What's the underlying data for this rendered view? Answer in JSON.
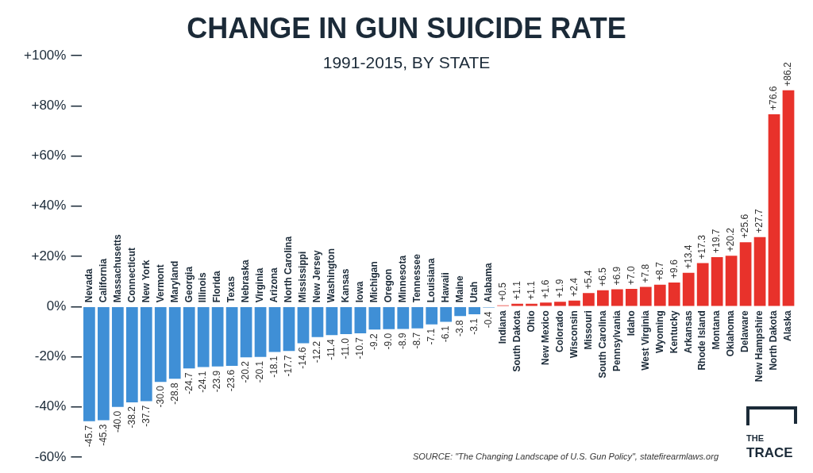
{
  "chart_data": {
    "type": "bar",
    "title": "CHANGE IN GUN SUICIDE RATE",
    "subtitle": "1991-2015, BY STATE",
    "annotations": [
      "SOURCE: \"The Changing Landscape of U.S. Gun Policy\", statefirearmlaws.org",
      "THE TRACE"
    ],
    "categories": [
      "Nevada",
      "California",
      "Massachusetts",
      "Connecticut",
      "New York",
      "Vermont",
      "Maryland",
      "Georgia",
      "Illinois",
      "Florida",
      "Texas",
      "Nebraska",
      "Virginia",
      "Arizona",
      "North Carolina",
      "Mississippi",
      "New Jersey",
      "Washington",
      "Kansas",
      "Iowa",
      "Michigan",
      "Oregon",
      "Minnesota",
      "Tennessee",
      "Louisiana",
      "Hawaii",
      "Maine",
      "Utah",
      "Alabama",
      "Indiana",
      "South Dakota",
      "Ohio",
      "New Mexico",
      "Colorado",
      "Wisconsin",
      "Missouri",
      "South Carolina",
      "Pennsylvania",
      "Idaho",
      "West Virginia",
      "Wyoming",
      "Kentucky",
      "Arkansas",
      "Rhode Island",
      "Montana",
      "Oklahoma",
      "Delaware",
      "New Hampshire",
      "North Dakota",
      "Alaska"
    ],
    "values": [
      -45.7,
      -45.3,
      -40.0,
      -38.2,
      -37.7,
      -30.0,
      -28.8,
      -24.7,
      -24.1,
      -23.9,
      -23.6,
      -20.2,
      -20.1,
      -18.1,
      -17.7,
      -14.6,
      -12.2,
      -11.4,
      -11.0,
      -10.7,
      -9.2,
      -9.0,
      -8.9,
      -8.7,
      -7.1,
      -6.1,
      -3.8,
      -3.1,
      -0.4,
      0.5,
      1.1,
      1.1,
      1.6,
      1.9,
      2.4,
      5.4,
      6.5,
      6.9,
      7.0,
      7.8,
      8.7,
      9.6,
      13.4,
      17.3,
      19.7,
      20.2,
      25.6,
      27.7,
      76.6,
      86.2
    ],
    "value_labels": [
      "-45.7",
      "-45.3",
      "-40.0",
      "-38.2",
      "-37.7",
      "-30.0",
      "-28.8",
      "-24.7",
      "-24.1",
      "-23.9",
      "-23.6",
      "-20.2",
      "-20.1",
      "-18.1",
      "-17.7",
      "-14.6",
      "-12.2",
      "-11.4",
      "-11.0",
      "-10.7",
      "-9.2",
      "-9.0",
      "-8.9",
      "-8.7",
      "-7.1",
      "-6.1",
      "-3.8",
      "-3.1",
      "-0.4",
      "+0.5",
      "+1.1",
      "+1.1",
      "+1.6",
      "+1.9",
      "+2.4",
      "+5.4",
      "+6.5",
      "+6.9",
      "+7.0",
      "+7.8",
      "+8.7",
      "+9.6",
      "+13.4",
      "+17.3",
      "+19.7",
      "+20.2",
      "+25.6",
      "+27.7",
      "+76.6",
      "+86.2"
    ],
    "colors": [
      "#3f8fd6",
      "#3f8fd6",
      "#3f8fd6",
      "#3f8fd6",
      "#3f8fd6",
      "#3f8fd6",
      "#3f8fd6",
      "#3f8fd6",
      "#3f8fd6",
      "#3f8fd6",
      "#3f8fd6",
      "#3f8fd6",
      "#3f8fd6",
      "#3f8fd6",
      "#3f8fd6",
      "#3f8fd6",
      "#3f8fd6",
      "#3f8fd6",
      "#3f8fd6",
      "#3f8fd6",
      "#3f8fd6",
      "#3f8fd6",
      "#3f8fd6",
      "#3f8fd6",
      "#3f8fd6",
      "#3f8fd6",
      "#3f8fd6",
      "#3f8fd6",
      "#3f8fd6",
      "#e8322b",
      "#e8322b",
      "#e8322b",
      "#e8322b",
      "#e8322b",
      "#e8322b",
      "#e8322b",
      "#e8322b",
      "#e8322b",
      "#e8322b",
      "#e8322b",
      "#e8322b",
      "#e8322b",
      "#e8322b",
      "#e8322b",
      "#e8322b",
      "#e8322b",
      "#e8322b",
      "#e8322b",
      "#e8322b",
      "#e8322b"
    ],
    "ylim": [
      -60,
      100
    ],
    "yticks": [
      {
        "value": -60,
        "label": "-60%"
      },
      {
        "value": -40,
        "label": "-40%"
      },
      {
        "value": -20,
        "label": "-20%"
      },
      {
        "value": 0,
        "label": "0%"
      },
      {
        "value": 20,
        "label": "+20%"
      },
      {
        "value": 40,
        "label": "+40%"
      },
      {
        "value": 60,
        "label": "+60%"
      },
      {
        "value": 80,
        "label": "+80%"
      },
      {
        "value": 100,
        "label": "+100%"
      }
    ],
    "grid": false,
    "data_labels": true
  }
}
